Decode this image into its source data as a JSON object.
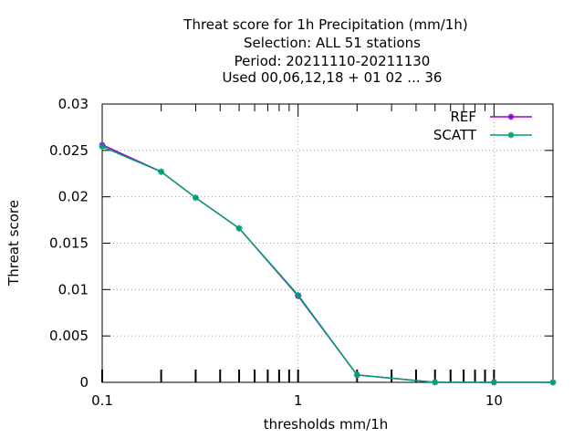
{
  "chart_data": {
    "type": "line",
    "title_lines": [
      "Threat score  for 1h Precipitation (mm/1h)",
      "Selection: ALL     51 stations",
      "Period: 20211110-20211130",
      "Used  00,06,12,18 + 01 02 ... 36"
    ],
    "xlabel": "thresholds mm/1h",
    "ylabel": "Threat score",
    "x_scale": "log",
    "xlim": [
      0.1,
      20
    ],
    "ylim": [
      0,
      0.03
    ],
    "x_ticks": [
      0.1,
      1,
      10
    ],
    "x_tick_labels": [
      "0.1",
      "1",
      "10"
    ],
    "y_ticks": [
      0,
      0.005,
      0.01,
      0.015,
      0.02,
      0.025,
      0.03
    ],
    "y_tick_labels": [
      "0",
      "0.005",
      "0.01",
      "0.015",
      "0.02",
      "0.025",
      "0.03"
    ],
    "grid": true,
    "legend_position": "top-right",
    "x": [
      0.1,
      0.2,
      0.3,
      0.5,
      1,
      2,
      5,
      10,
      20
    ],
    "series": [
      {
        "name": "REF",
        "color": "#9400d3",
        "marker": "asterisk",
        "values": [
          0.0256,
          0.0227,
          0.0199,
          0.0166,
          0.0093,
          0.0008,
          0.0,
          0.0,
          0.0
        ]
      },
      {
        "name": "SCATT",
        "color": "#009e73",
        "marker": "asterisk",
        "values": [
          0.0254,
          0.0227,
          0.0199,
          0.0166,
          0.0094,
          0.0008,
          0.0,
          0.0,
          0.0
        ]
      }
    ]
  }
}
